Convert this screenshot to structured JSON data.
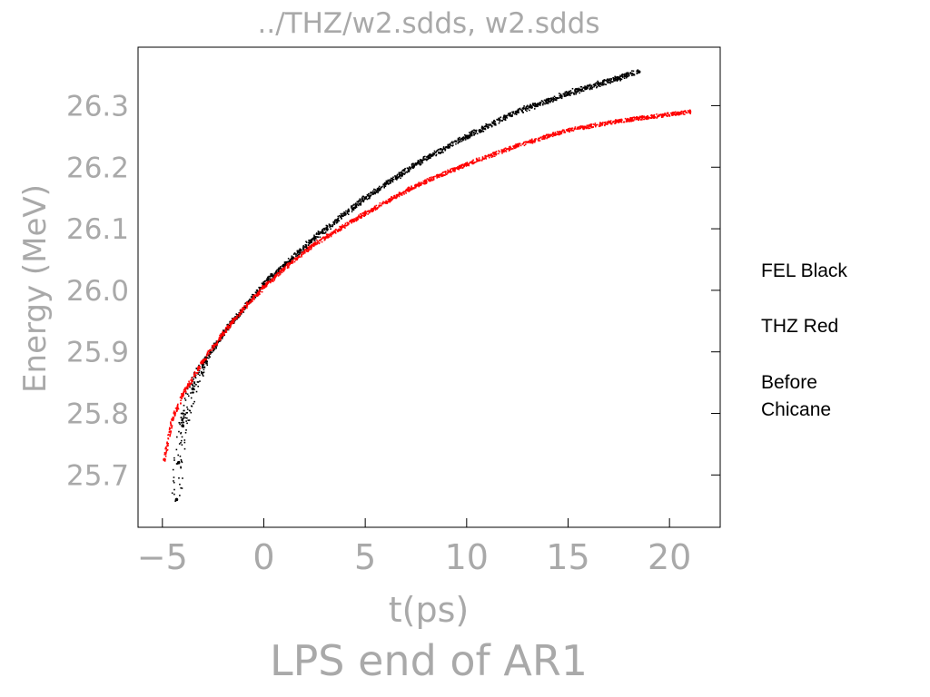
{
  "chart_data": {
    "type": "scatter",
    "title": "../THZ/w2.sdds, w2.sdds",
    "xlabel": "t(ps)",
    "ylabel": "Energy (MeV)",
    "caption": "LPS end of AR1",
    "xlim": [
      -6.2,
      22.5
    ],
    "ylim": [
      25.615,
      26.395
    ],
    "xticks": [
      -5,
      0,
      5,
      10,
      15,
      20
    ],
    "yticks": [
      25.7,
      25.8,
      25.9,
      26.0,
      26.1,
      26.2,
      26.3
    ],
    "ytick_labels": [
      "25.7",
      "25.8",
      "25.9",
      "26.0",
      "26.1",
      "26.2",
      "26.3"
    ],
    "grid": false,
    "series": [
      {
        "color": "#000000",
        "points": [
          {
            "x": -4.3,
            "y": 25.66
          },
          {
            "x": -4.2,
            "y": 25.72
          },
          {
            "x": -4.0,
            "y": 25.78
          },
          {
            "x": -3.5,
            "y": 25.84
          },
          {
            "x": -3.0,
            "y": 25.88
          },
          {
            "x": -2.0,
            "y": 25.93
          },
          {
            "x": -1.0,
            "y": 25.97
          },
          {
            "x": 0.0,
            "y": 26.01
          },
          {
            "x": 1.0,
            "y": 26.04
          },
          {
            "x": 2.5,
            "y": 26.085
          },
          {
            "x": 5.0,
            "y": 26.15
          },
          {
            "x": 7.5,
            "y": 26.205
          },
          {
            "x": 10.0,
            "y": 26.25
          },
          {
            "x": 12.5,
            "y": 26.29
          },
          {
            "x": 15.0,
            "y": 26.32
          },
          {
            "x": 17.5,
            "y": 26.345
          },
          {
            "x": 18.5,
            "y": 26.355
          }
        ]
      },
      {
        "color": "#ff0000",
        "points": [
          {
            "x": -4.9,
            "y": 25.725
          },
          {
            "x": -4.5,
            "y": 25.79
          },
          {
            "x": -4.0,
            "y": 25.83
          },
          {
            "x": -3.0,
            "y": 25.885
          },
          {
            "x": -2.0,
            "y": 25.93
          },
          {
            "x": -1.0,
            "y": 25.97
          },
          {
            "x": 0.0,
            "y": 26.005
          },
          {
            "x": 1.0,
            "y": 26.035
          },
          {
            "x": 2.5,
            "y": 26.075
          },
          {
            "x": 5.0,
            "y": 26.125
          },
          {
            "x": 7.5,
            "y": 26.17
          },
          {
            "x": 10.0,
            "y": 26.205
          },
          {
            "x": 12.5,
            "y": 26.235
          },
          {
            "x": 15.0,
            "y": 26.26
          },
          {
            "x": 17.5,
            "y": 26.275
          },
          {
            "x": 21.0,
            "y": 26.29
          }
        ]
      }
    ]
  },
  "legend": {
    "line1": "FEL Black",
    "line2": "THZ Red",
    "line3": "Before",
    "line4": "Chicane"
  }
}
